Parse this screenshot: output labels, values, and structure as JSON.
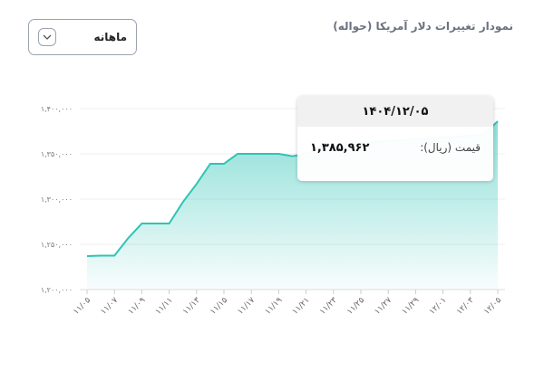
{
  "header": {
    "title": "نمودار تغییرات دلار آمریکا (حواله)"
  },
  "period_select": {
    "value": "ماهانه",
    "icon": "chevron-down-icon"
  },
  "tooltip": {
    "date": "۱۴۰۴/۱۲/۰۵",
    "label": "قیمت (ریال):",
    "value": "۱,۳۸۵,۹۶۲"
  },
  "chart_data": {
    "type": "area",
    "color": "#2ec4b6",
    "grid": true,
    "ylim": [
      1200000,
      1400000
    ],
    "y_ticks": [
      1200000,
      1250000,
      1300000,
      1350000,
      1400000
    ],
    "y_tick_labels": [
      "۱,۲۰۰,۰۰۰",
      "۱,۲۵۰,۰۰۰",
      "۱,۳۰۰,۰۰۰",
      "۱,۳۵۰,۰۰۰",
      "۱,۴۰۰,۰۰۰"
    ],
    "x_tick_labels": [
      "۱۱/۰۵",
      "۱۱/۰۷",
      "۱۱/۰۹",
      "۱۱/۱۱",
      "۱۱/۱۳",
      "۱۱/۱۵",
      "۱۱/۱۷",
      "۱۱/۱۹",
      "۱۱/۲۱",
      "۱۱/۲۳",
      "۱۱/۲۵",
      "۱۱/۲۷",
      "۱۱/۲۹",
      "۱۲/۰۱",
      "۱۲/۰۳",
      "۱۲/۰۵"
    ],
    "x": [
      "11/05",
      "11/06",
      "11/07",
      "11/08",
      "11/09",
      "11/10",
      "11/11",
      "11/12",
      "11/13",
      "11/14",
      "11/15",
      "11/16",
      "11/17",
      "11/18",
      "11/19",
      "11/20",
      "11/21",
      "11/22",
      "11/23",
      "11/24",
      "11/25",
      "11/26",
      "11/27",
      "11/28",
      "11/29",
      "11/30",
      "12/01",
      "12/02",
      "12/03",
      "12/04",
      "12/05"
    ],
    "values": [
      1237000,
      1237500,
      1237500,
      1256700,
      1273000,
      1273000,
      1273000,
      1296700,
      1316700,
      1339000,
      1339000,
      1350000,
      1350000,
      1350000,
      1350000,
      1347400,
      1350000,
      1358000,
      1360000,
      1361000,
      1362000,
      1363000,
      1364000,
      1365000,
      1366000,
      1367000,
      1368000,
      1369000,
      1370000,
      1372000,
      1385962
    ]
  }
}
